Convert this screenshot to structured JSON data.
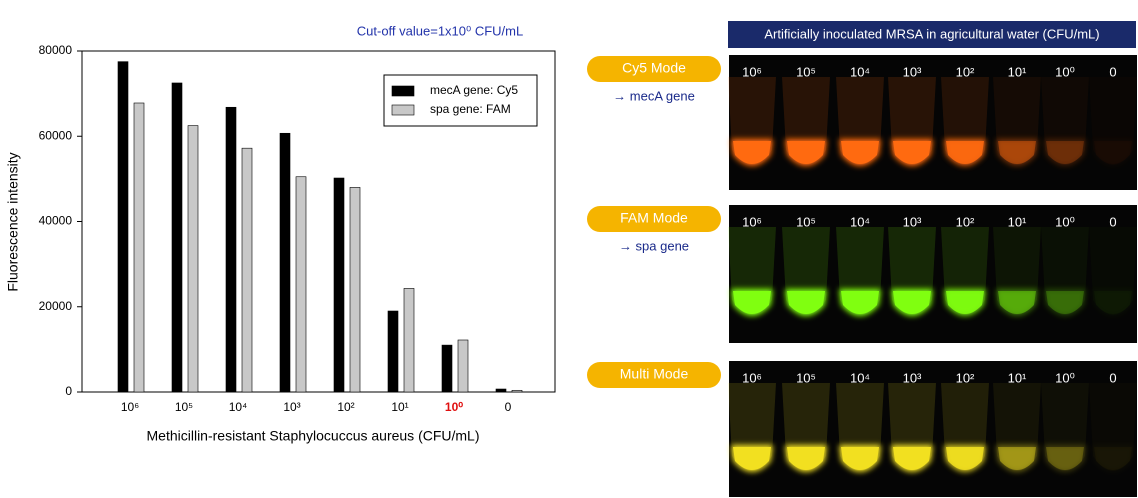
{
  "chart_data": {
    "type": "bar",
    "annotation": "Cut-off value=1x10⁰ CFU/mL",
    "x_label": "Methicillin-resistant Staphylocuccus aureus (CFU/mL)",
    "y_label": "Fluorescence intensity",
    "categories": [
      "10⁶",
      "10⁵",
      "10⁴",
      "10³",
      "10²",
      "10¹",
      "10⁰",
      "0"
    ],
    "highlight_category": "10⁰",
    "highlight_color": "#e01010",
    "series": [
      {
        "name": "mecA gene: Cy5",
        "color": "#000000",
        "values": [
          77500,
          72500,
          66800,
          60700,
          50200,
          19000,
          11000,
          700
        ]
      },
      {
        "name": "spa gene: FAM",
        "color": "#c8c8c8",
        "values": [
          67800,
          62500,
          57200,
          50500,
          48000,
          24300,
          12200,
          400
        ]
      }
    ],
    "ylim": [
      0,
      80000
    ],
    "yticks": [
      0,
      20000,
      40000,
      60000,
      80000
    ],
    "grid": false,
    "legend": "upper right"
  },
  "panel": {
    "header": "Artificially inoculated MRSA in agricultural water (CFU/mL)",
    "tube_labels": [
      "10⁶",
      "10⁵",
      "10⁴",
      "10³",
      "10²",
      "10¹",
      "10⁰",
      "0"
    ],
    "modes": [
      {
        "label": "Cy5 Mode",
        "gene": "→ mecA gene",
        "color": "#ff6a10"
      },
      {
        "label": "FAM Mode",
        "gene": "→ spa gene",
        "color": "#80ff10"
      },
      {
        "label": "Multi Mode",
        "color": "#f2e020"
      }
    ]
  }
}
